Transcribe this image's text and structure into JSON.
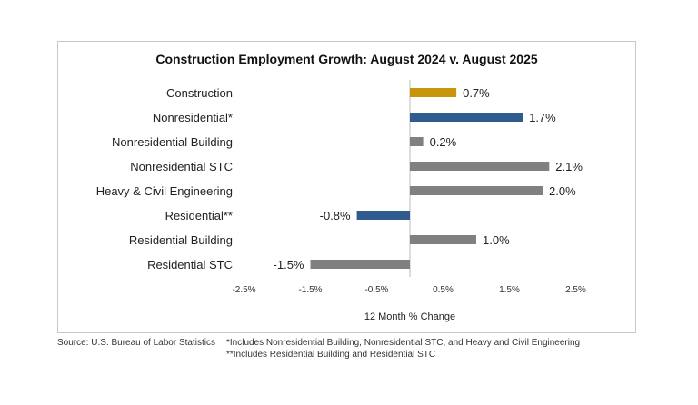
{
  "chart_data": {
    "type": "bar",
    "orientation": "horizontal",
    "title": "Construction Employment Growth: August 2024 v. August 2025",
    "xlabel": "12 Month % Change",
    "ylabel": "",
    "categories": [
      "Construction",
      "Nonresidential*",
      "Nonresidential Building",
      "Nonresidential STC",
      "Heavy & Civil Engineering",
      "Residential**",
      "Residential Building",
      "Residential STC"
    ],
    "values": [
      0.7,
      1.7,
      0.2,
      2.1,
      2.0,
      -0.8,
      1.0,
      -1.5
    ],
    "data_labels": [
      "0.7%",
      "1.7%",
      "0.2%",
      "2.1%",
      "2.0%",
      "-0.8%",
      "1.0%",
      "-1.5%"
    ],
    "bar_colors": [
      "#C8960C",
      "#2F5B8F",
      "#808080",
      "#808080",
      "#808080",
      "#2F5B8F",
      "#808080",
      "#808080"
    ],
    "xticks": [
      -2.5,
      -1.5,
      -0.5,
      0.5,
      1.5,
      2.5
    ],
    "xtick_labels": [
      "-2.5%",
      "-1.5%",
      "-0.5%",
      "0.5%",
      "1.5%",
      "2.5%"
    ],
    "xlim": [
      -2.5,
      2.5
    ],
    "grid": false,
    "legend": "none"
  },
  "footer": {
    "source": "Source:  U.S. Bureau of Labor Statistics",
    "note1": "*Includes Nonresidential Building, Nonresidential STC, and Heavy and Civil Engineering",
    "note2": "**Includes Residential Building and Residential STC"
  }
}
